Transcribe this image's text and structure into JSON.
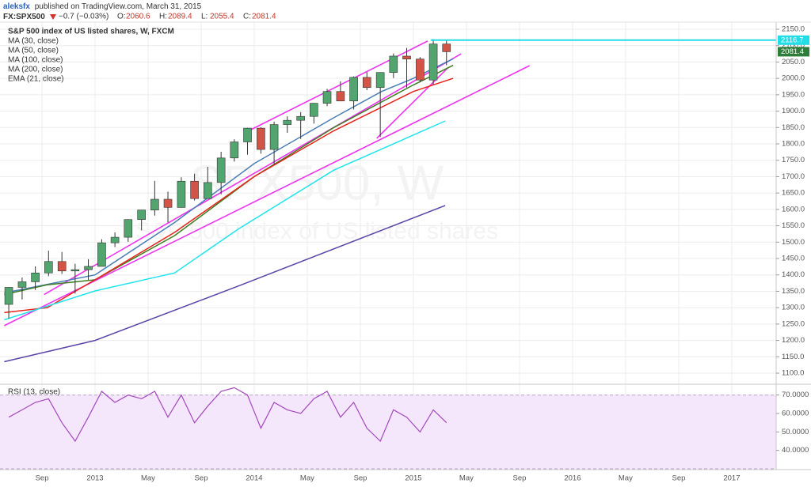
{
  "header": {
    "author": "aleksfx",
    "published": "published on TradingView.com, March 31, 2015",
    "symbol": "FX:SPX500",
    "change": "−0.7 (−0.03%)",
    "ohlc": [
      {
        "label": "O:",
        "value": 2060.6
      },
      {
        "label": "H:",
        "value": 2089.4
      },
      {
        "label": "L:",
        "value": 2055.4
      },
      {
        "label": "C:",
        "value": 2081.4
      }
    ]
  },
  "chart_data": [
    {
      "type": "candlestick",
      "title": "S&P 500 index of US listed shares, W, FXCM",
      "watermark": "SPX500, W",
      "watermark_subtitle": "S&P 500 index of US listed shares",
      "up_color": "#53a56f",
      "down_color": "#d35447",
      "x": [
        2012.458,
        2012.542,
        2012.625,
        2012.708,
        2012.792,
        2012.875,
        2012.958,
        2013.042,
        2013.125,
        2013.208,
        2013.292,
        2013.375,
        2013.458,
        2013.542,
        2013.625,
        2013.708,
        2013.792,
        2013.875,
        2013.958,
        2014.042,
        2014.125,
        2014.208,
        2014.292,
        2014.375,
        2014.458,
        2014.542,
        2014.625,
        2014.708,
        2014.792,
        2014.875,
        2014.958,
        2015.042,
        2015.125,
        2015.208
      ],
      "open": [
        1310,
        1362,
        1379,
        1406,
        1441,
        1412,
        1416,
        1426,
        1498,
        1515,
        1569,
        1598,
        1631,
        1606,
        1686,
        1633,
        1682,
        1757,
        1806,
        1848,
        1783,
        1859,
        1872,
        1884,
        1924,
        1960,
        1931,
        2003,
        1972,
        2018,
        2068,
        2059,
        1995,
        2105
      ],
      "high": [
        1363,
        1392,
        1426,
        1474,
        1470,
        1434,
        1448,
        1509,
        1530,
        1570,
        1598,
        1687,
        1654,
        1698,
        1709,
        1730,
        1776,
        1814,
        1849,
        1851,
        1868,
        1884,
        1897,
        1925,
        1968,
        1991,
        2006,
        2019,
        2018,
        2076,
        2093,
        2065,
        2120,
        2117
      ],
      "low": [
        1267,
        1325,
        1354,
        1396,
        1403,
        1343,
        1385,
        1426,
        1485,
        1501,
        1536,
        1581,
        1560,
        1605,
        1627,
        1633,
        1646,
        1746,
        1767,
        1770,
        1737,
        1834,
        1815,
        1862,
        1915,
        1930,
        1905,
        1964,
        1821,
        2001,
        1972,
        1988,
        1981,
        2040
      ],
      "close": [
        1362,
        1379,
        1406,
        1441,
        1412,
        1416,
        1426,
        1498,
        1515,
        1569,
        1598,
        1631,
        1606,
        1686,
        1633,
        1682,
        1757,
        1806,
        1848,
        1783,
        1859,
        1872,
        1884,
        1924,
        1960,
        1931,
        2003,
        1972,
        2018,
        2068,
        2059,
        1995,
        2105,
        2081.4
      ],
      "series": [
        {
          "name": "MA (30, close)",
          "color": "#4a7eb5",
          "x": [
            2012.43,
            2013.0,
            2013.5,
            2014.0,
            2014.5,
            2014.8,
            2015.0,
            2015.25
          ],
          "values": [
            1345,
            1400,
            1560,
            1740,
            1880,
            1960,
            2000,
            2060
          ]
        },
        {
          "name": "MA (50, close)",
          "color": "#3f7d23",
          "x": [
            2012.43,
            2012.7,
            2013.0,
            2013.5,
            2014.0,
            2014.5,
            2015.0,
            2015.25
          ],
          "values": [
            1340,
            1370,
            1385,
            1520,
            1700,
            1850,
            1980,
            2040
          ]
        },
        {
          "name": "MA (100, close)",
          "color": "#e8231b",
          "x": [
            2012.43,
            2012.7,
            2013.0,
            2013.5,
            2014.0,
            2014.5,
            2015.0,
            2015.25
          ],
          "values": [
            1285,
            1300,
            1385,
            1530,
            1700,
            1840,
            1960,
            2000
          ]
        },
        {
          "name": "MA (200, close)",
          "color": "#1fe3ec",
          "x": [
            2012.43,
            2013.0,
            2013.5,
            2013.9,
            2014.5,
            2015.2
          ],
          "values": [
            1263,
            1351,
            1406,
            1540,
            1720,
            1870
          ]
        },
        {
          "name": "EMA (21, close)",
          "color": "#5b44a8",
          "x": [
            2012.43,
            2013.0,
            2013.9,
            2015.2
          ],
          "values": [
            1135,
            1200,
            1366,
            1612
          ]
        }
      ],
      "drawings": [
        {
          "color": "#ee33ee",
          "x": [
            2012.43,
            2015.73
          ],
          "values": [
            1245,
            2039
          ]
        },
        {
          "color": "#ee33ee",
          "x": [
            2012.68,
            2015.3
          ],
          "values": [
            1340,
            2075
          ]
        },
        {
          "color": "#ee33ee",
          "x": [
            2013.97,
            2015.09
          ],
          "values": [
            1841,
            2114
          ]
        },
        {
          "color": "#ee33ee",
          "x": [
            2014.77,
            2015.22
          ],
          "values": [
            1817,
            2034
          ]
        }
      ],
      "price_labels": [
        {
          "value": 2116.7,
          "color": "#22dde6",
          "line": true
        },
        {
          "value": 2081.4,
          "color": "#2f7d3a",
          "line": false
        }
      ],
      "xlim": [
        2012.403,
        2017.279
      ],
      "xticks": [
        {
          "value": 2012.667,
          "label": "Sep"
        },
        {
          "value": 2013.0,
          "label": "2013"
        },
        {
          "value": 2013.333,
          "label": "May"
        },
        {
          "value": 2013.667,
          "label": "Sep"
        },
        {
          "value": 2014.0,
          "label": "2014"
        },
        {
          "value": 2014.333,
          "label": "May"
        },
        {
          "value": 2014.667,
          "label": "Sep"
        },
        {
          "value": 2015.0,
          "label": "2015"
        },
        {
          "value": 2015.333,
          "label": "May"
        },
        {
          "value": 2015.667,
          "label": "Sep"
        },
        {
          "value": 2016.0,
          "label": "2016"
        },
        {
          "value": 2016.333,
          "label": "May"
        },
        {
          "value": 2016.667,
          "label": "Sep"
        },
        {
          "value": 2017.0,
          "label": "2017"
        }
      ],
      "ylim": [
        1073.5,
        2166.9
      ],
      "yticks": [
        {
          "value": 1100,
          "label": "1100.0"
        },
        {
          "value": 1150,
          "label": "1150.0"
        },
        {
          "value": 1200,
          "label": "1200.0"
        },
        {
          "value": 1250,
          "label": "1250.0"
        },
        {
          "value": 1300,
          "label": "1300.0"
        },
        {
          "value": 1350,
          "label": "1350.0"
        },
        {
          "value": 1400,
          "label": "1400.0"
        },
        {
          "value": 1450,
          "label": "1450.0"
        },
        {
          "value": 1500,
          "label": "1500.0"
        },
        {
          "value": 1550,
          "label": "1550.0"
        },
        {
          "value": 1600,
          "label": "1600.0"
        },
        {
          "value": 1650,
          "label": "1650.0"
        },
        {
          "value": 1700,
          "label": "1700.0"
        },
        {
          "value": 1750,
          "label": "1750.0"
        },
        {
          "value": 1800,
          "label": "1800.0"
        },
        {
          "value": 1850,
          "label": "1850.0"
        },
        {
          "value": 1900,
          "label": "1900.0"
        },
        {
          "value": 1950,
          "label": "1950.0"
        },
        {
          "value": 2000,
          "label": "2000.0"
        },
        {
          "value": 2050,
          "label": "2050.0"
        },
        {
          "value": 2100,
          "label": "2100.0"
        },
        {
          "value": 2150,
          "label": "2150.0"
        }
      ],
      "grid": true
    },
    {
      "type": "line",
      "title": "RSI (13, close)",
      "color": "#a447bd",
      "band": [
        30,
        70
      ],
      "band_color": "#f4e6fb",
      "values": [
        58,
        62,
        66,
        68,
        55,
        45,
        58,
        72,
        66,
        70,
        68,
        72,
        58,
        70,
        55,
        64,
        72,
        74,
        70,
        52,
        66,
        62,
        60,
        68,
        72,
        58,
        66,
        52,
        45,
        62,
        58,
        50,
        62,
        55
      ],
      "ylim": [
        30,
        75.45
      ],
      "yticks": [
        {
          "value": 40,
          "label": "40.0000"
        },
        {
          "value": 50,
          "label": "50.0000"
        },
        {
          "value": 60,
          "label": "60.0000"
        },
        {
          "value": 70,
          "label": "70.0000"
        }
      ],
      "grid": true
    }
  ]
}
